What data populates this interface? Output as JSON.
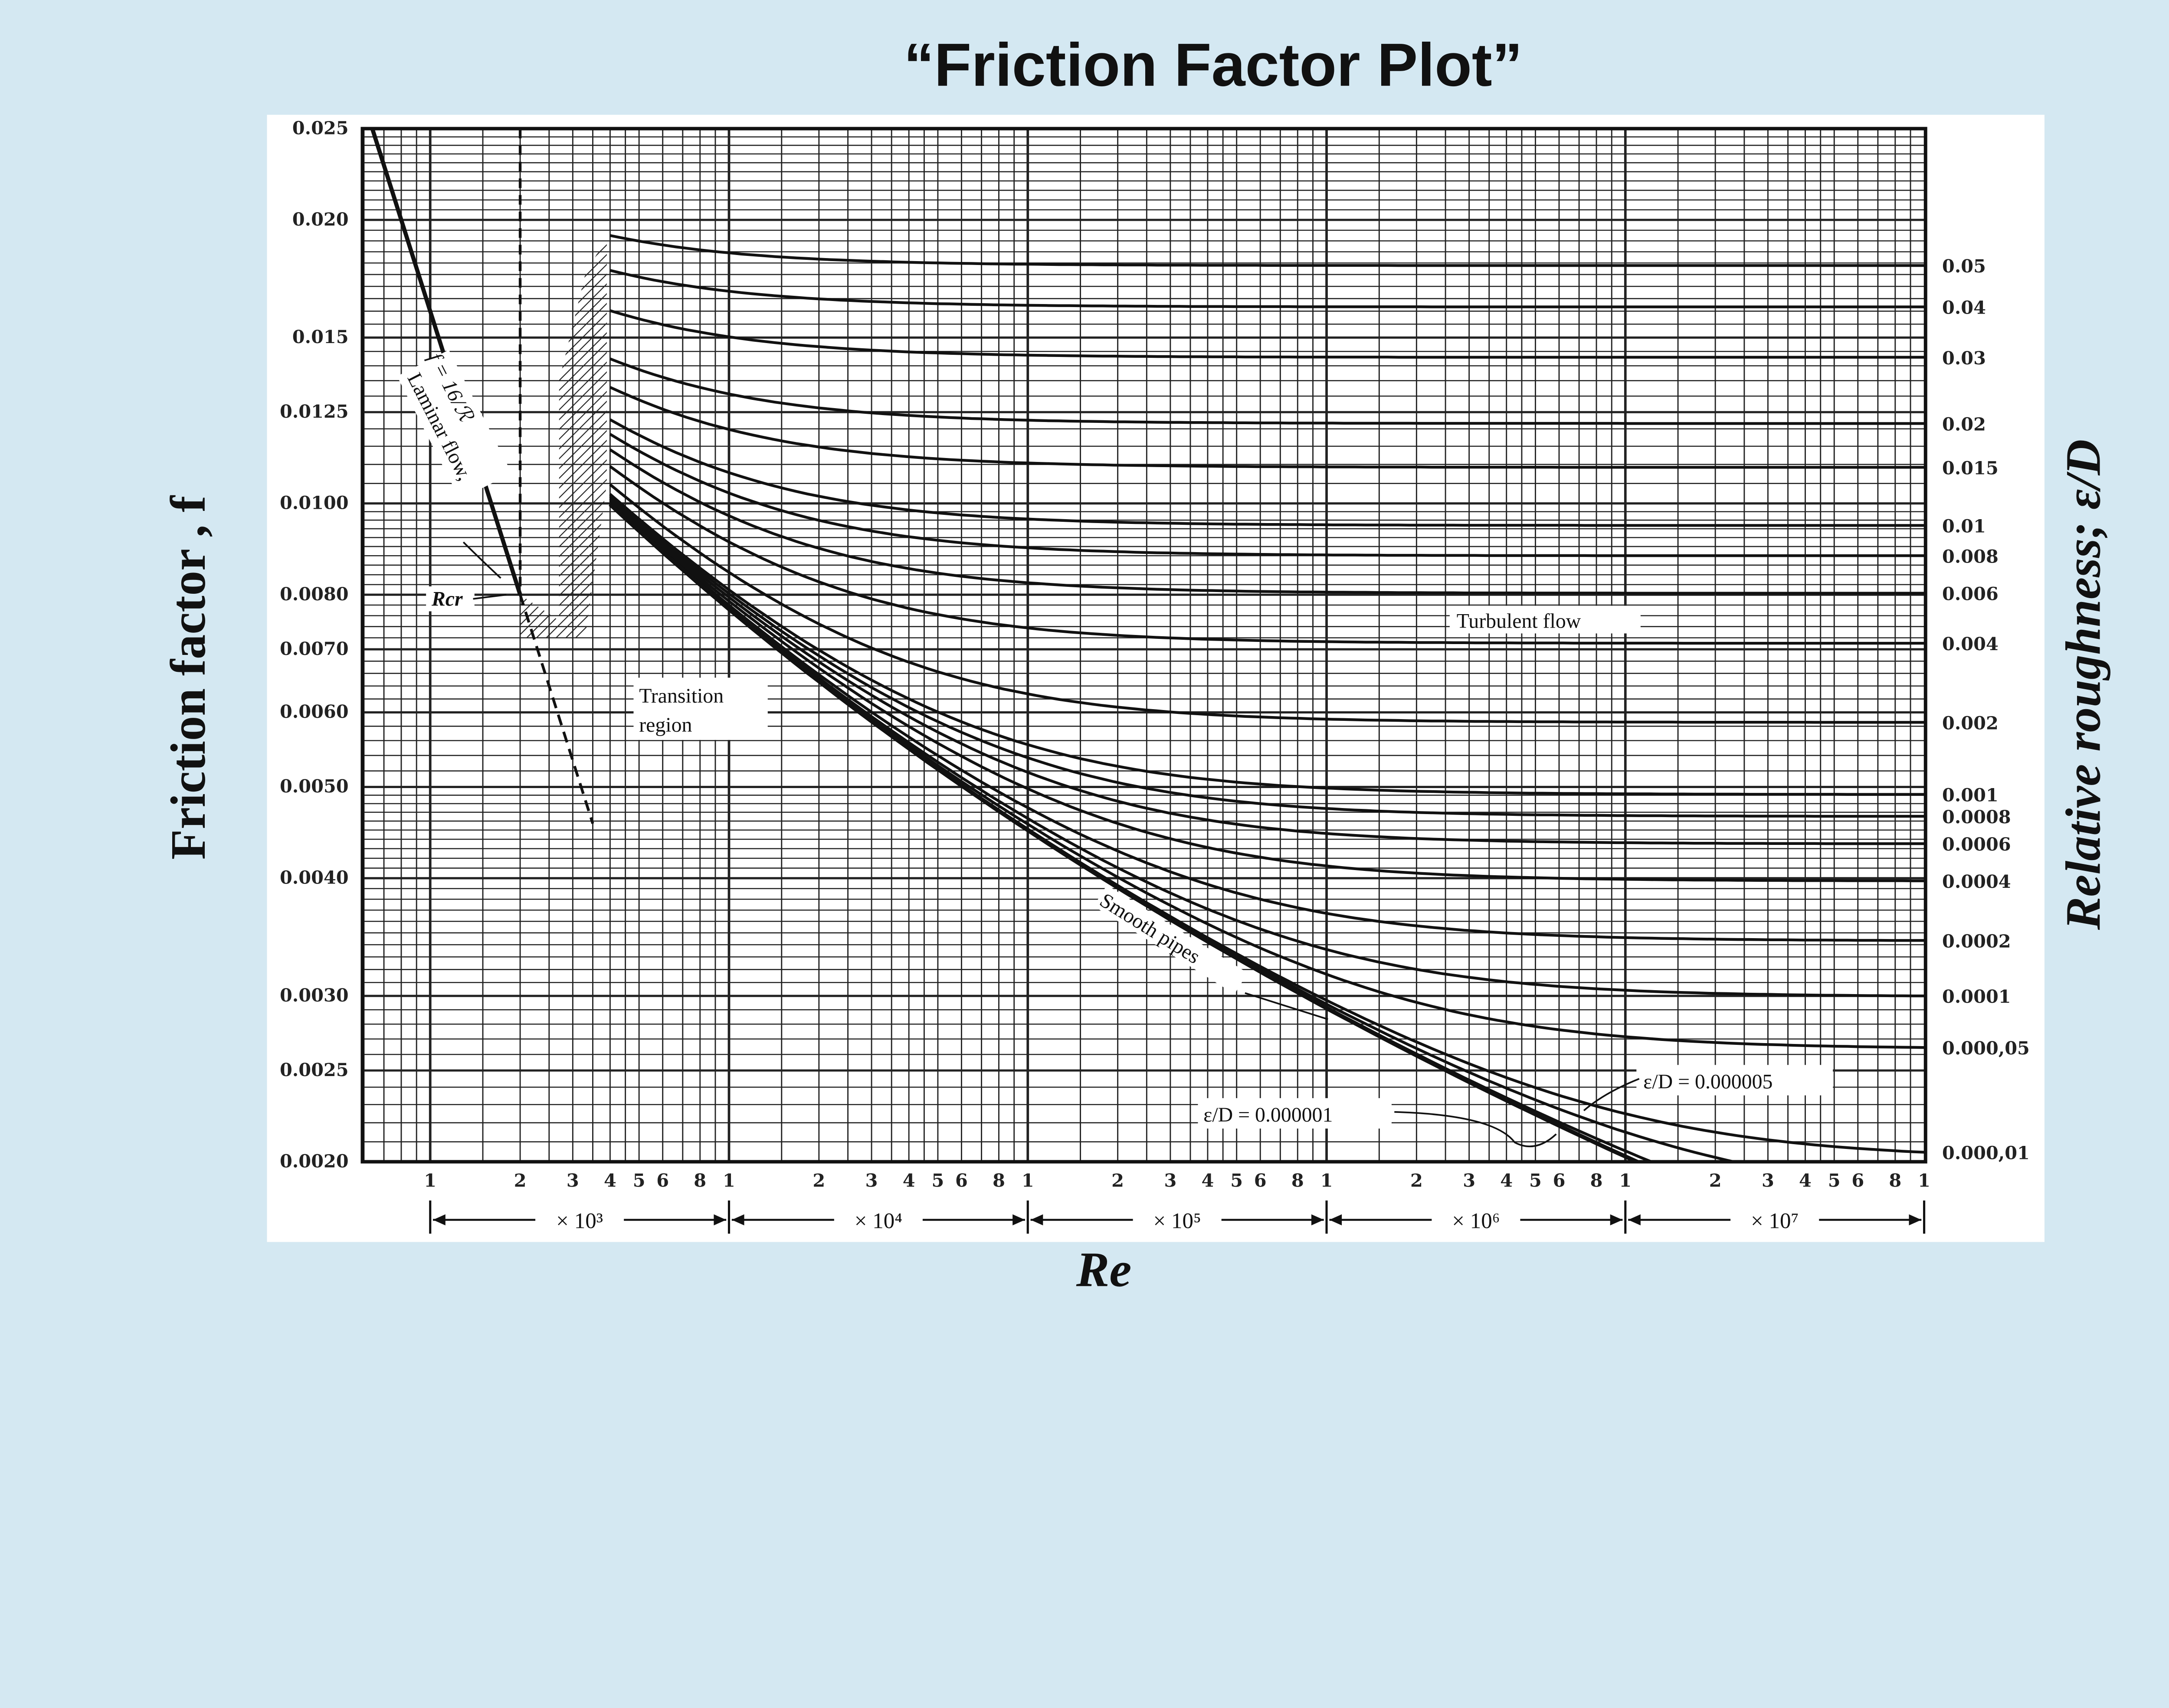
{
  "title": "“Friction Factor Plot”",
  "chart_data": {
    "type": "line",
    "title": "“Friction Factor Plot”",
    "xlabel": "Re",
    "ylabel": "Friction factor , f",
    "y2label": "Relative roughness; ε/D",
    "x_scale": "log",
    "y_scale": "log",
    "xlim": [
      600,
      100000000
    ],
    "ylim": [
      0.002,
      0.025
    ],
    "grid": true,
    "y_ticks": [
      "0.025",
      "0.020",
      "0.015",
      "0.0125",
      "0.0100",
      "0.0080",
      "0.0070",
      "0.0060",
      "0.0050",
      "0.0040",
      "0.0030",
      "0.0025",
      "0.0020"
    ],
    "x_tick_multiples": [
      "1",
      "2",
      "3",
      "4",
      "5",
      "6",
      "8"
    ],
    "x_decade_labels": [
      "× 10³",
      "× 10⁴",
      "× 10⁵",
      "× 10⁶",
      "× 10⁷"
    ],
    "x_final_tick": "1",
    "laminar": {
      "formula": "f = 16/Re",
      "re_range": [
        640,
        2000
      ],
      "dashed_extension_to": 3500
    },
    "critical_re": 2000,
    "turbulent_model": "Colebrook (Fanning): 1/√f = −4 log10(ε/3.7D + 1.256/(Re√f))",
    "turbulent_re_range": [
      4000,
      100000000
    ],
    "series": [
      {
        "name": "0.05",
        "roughness": 0.05
      },
      {
        "name": "0.04",
        "roughness": 0.04
      },
      {
        "name": "0.03",
        "roughness": 0.03
      },
      {
        "name": "0.02",
        "roughness": 0.02
      },
      {
        "name": "0.015",
        "roughness": 0.015
      },
      {
        "name": "0.01",
        "roughness": 0.01
      },
      {
        "name": "0.008",
        "roughness": 0.008
      },
      {
        "name": "0.006",
        "roughness": 0.006
      },
      {
        "name": "0.004",
        "roughness": 0.004
      },
      {
        "name": "0.002",
        "roughness": 0.002
      },
      {
        "name": "0.001",
        "roughness": 0.001
      },
      {
        "name": "0.0008",
        "roughness": 0.0008
      },
      {
        "name": "0.0006",
        "roughness": 0.0006
      },
      {
        "name": "0.0004",
        "roughness": 0.0004
      },
      {
        "name": "0.0002",
        "roughness": 0.0002
      },
      {
        "name": "0.0001",
        "roughness": 0.0001
      },
      {
        "name": "0.000,05",
        "roughness": 5e-05
      },
      {
        "name": "0.000,01",
        "roughness": 1e-05
      },
      {
        "name": "",
        "roughness": 5e-06
      },
      {
        "name": "",
        "roughness": 1e-06
      },
      {
        "name": "",
        "roughness": 0
      }
    ],
    "annotations": {
      "laminar_flow": "Laminar flow,",
      "laminar_eq": "f = 16/ℛ",
      "rcr": "Rcr",
      "transition_1": "Transition",
      "transition_2": "region",
      "turbulent": "Turbulent flow",
      "smooth": "Smooth pipes",
      "ed_000001": "ε/D = 0.000001",
      "ed_000005": "ε/D = 0.000005"
    }
  },
  "colors": {
    "background": "#d4e8f2",
    "panel": "#ffffff",
    "ink": "#111111"
  }
}
